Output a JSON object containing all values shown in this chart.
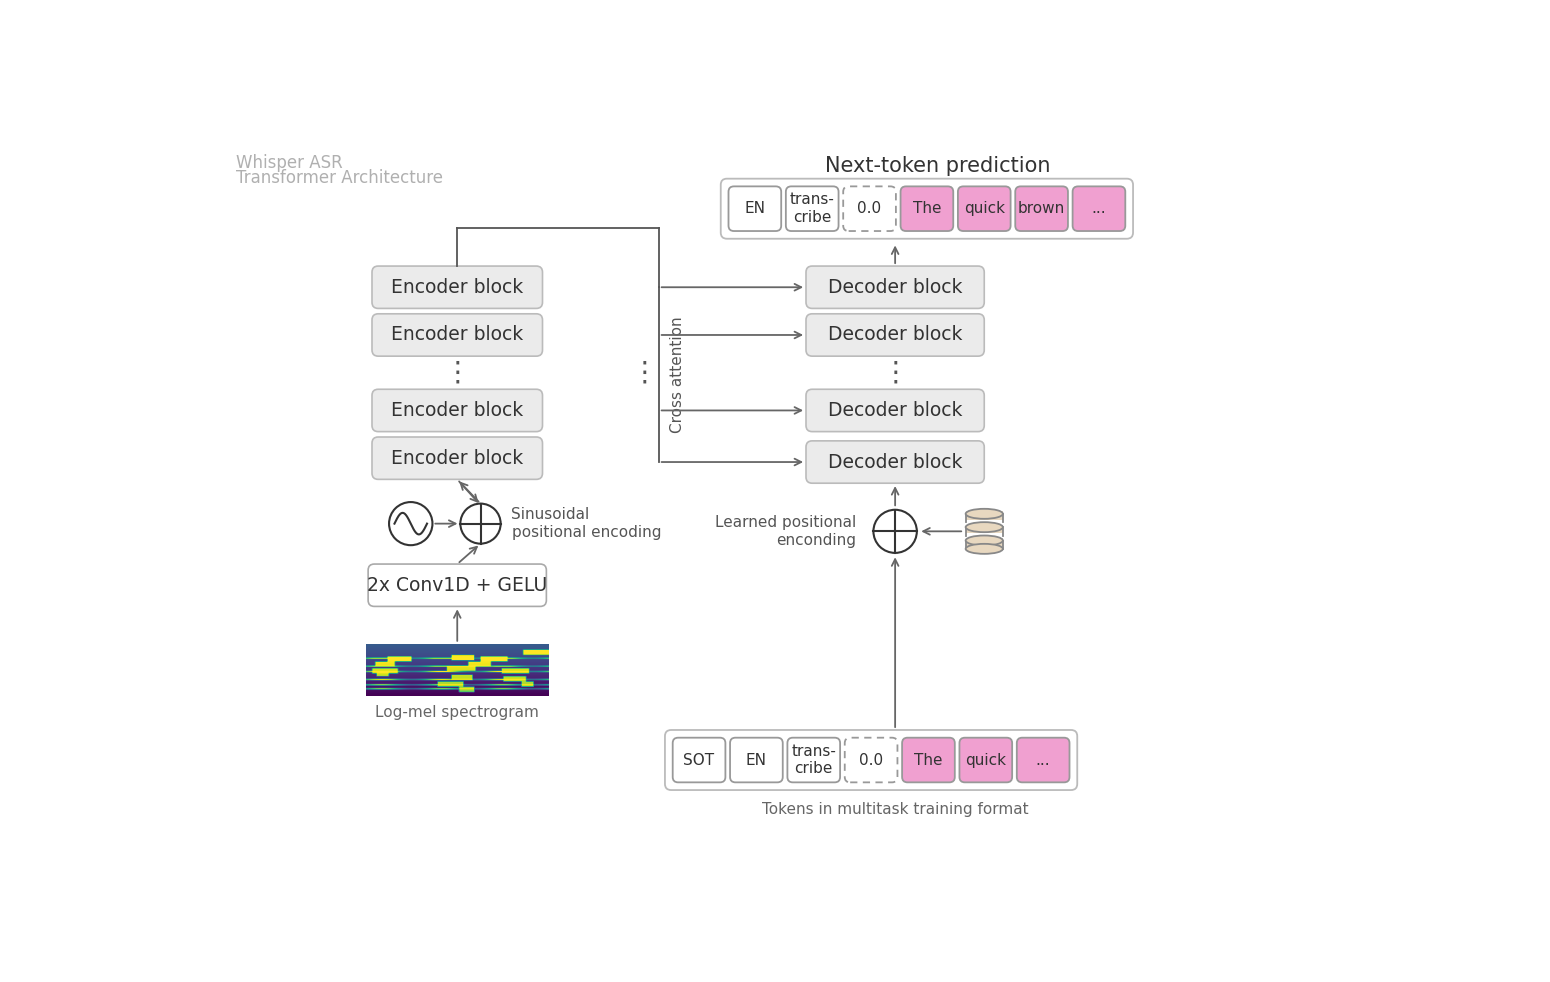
{
  "title1": "Whisper ASR",
  "title2": "Transformer Architecture",
  "title_color": "#b0b0b0",
  "bg_color": "#ffffff",
  "block_fill": "#ebebeb",
  "block_edge": "#cccccc",
  "output_tokens_top": [
    "EN",
    "trans-\ncribe",
    "0.0",
    "The",
    "quick",
    "brown",
    "..."
  ],
  "output_tokens_top_styles": [
    "plain",
    "plain",
    "dotted",
    "pink",
    "pink",
    "pink",
    "pink"
  ],
  "input_tokens_bottom": [
    "SOT",
    "EN",
    "trans-\ncribe",
    "0.0",
    "The",
    "quick",
    "..."
  ],
  "input_tokens_bottom_styles": [
    "plain",
    "plain",
    "plain",
    "dotted",
    "pink",
    "pink",
    "pink"
  ],
  "token_fill_pink": "#f0a0d0",
  "token_fill_white": "#ffffff",
  "token_edge_solid": "#999999",
  "token_edge_dotted": "#999999",
  "cross_attention_label": "Cross attention",
  "sinusoidal_label": "Sinusoidal\npositional encoding",
  "learned_label": "Learned positional\nenconding",
  "conv_label": "2x Conv1D + GELU",
  "spectrogram_label": "Log-mel spectrogram",
  "tokens_label": "Tokens in multitask training format",
  "next_token_label": "Next-token prediction"
}
